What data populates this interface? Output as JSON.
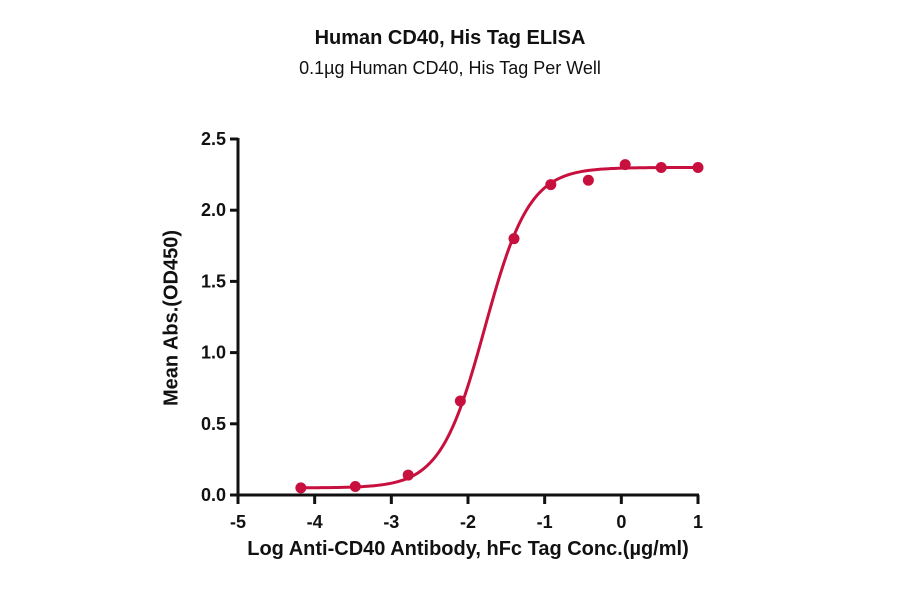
{
  "title": "Human CD40, His Tag ELISA",
  "subtitle": "0.1µg Human CD40, His Tag Per Well",
  "colors": {
    "series": "#C8103E",
    "axis": "#111111",
    "background": "#FFFFFF"
  },
  "chart_data": {
    "type": "scatter",
    "title": "Human CD40, His Tag ELISA",
    "subtitle": "0.1µg Human CD40, His Tag Per Well",
    "xlabel": "Log Anti-CD40 Antibody, hFc Tag Conc.(µg/ml)",
    "ylabel": "Mean Abs.(OD450)",
    "xlim": [
      -5,
      1
    ],
    "ylim": [
      0,
      2.5
    ],
    "xticks": [
      "-5",
      "-4",
      "-3",
      "-2",
      "-1",
      "0",
      "1"
    ],
    "yticks": [
      "0.0",
      "0.5",
      "1.0",
      "1.5",
      "2.0",
      "2.5"
    ],
    "grid": false,
    "legend": null,
    "series": [
      {
        "name": "Anti-CD40 Antibody, hFc Tag",
        "color": "#C8103E",
        "x": [
          -4.18,
          -3.47,
          -2.78,
          -2.1,
          -1.4,
          -0.92,
          -0.43,
          0.05,
          0.52,
          1.0
        ],
        "y": [
          0.05,
          0.06,
          0.14,
          0.66,
          1.8,
          2.18,
          2.21,
          2.32,
          2.3,
          2.3
        ],
        "fit": {
          "model": "4PL",
          "bottom": 0.05,
          "top": 2.3,
          "log_ec50": -1.78,
          "hill": 1.5
        }
      }
    ]
  }
}
